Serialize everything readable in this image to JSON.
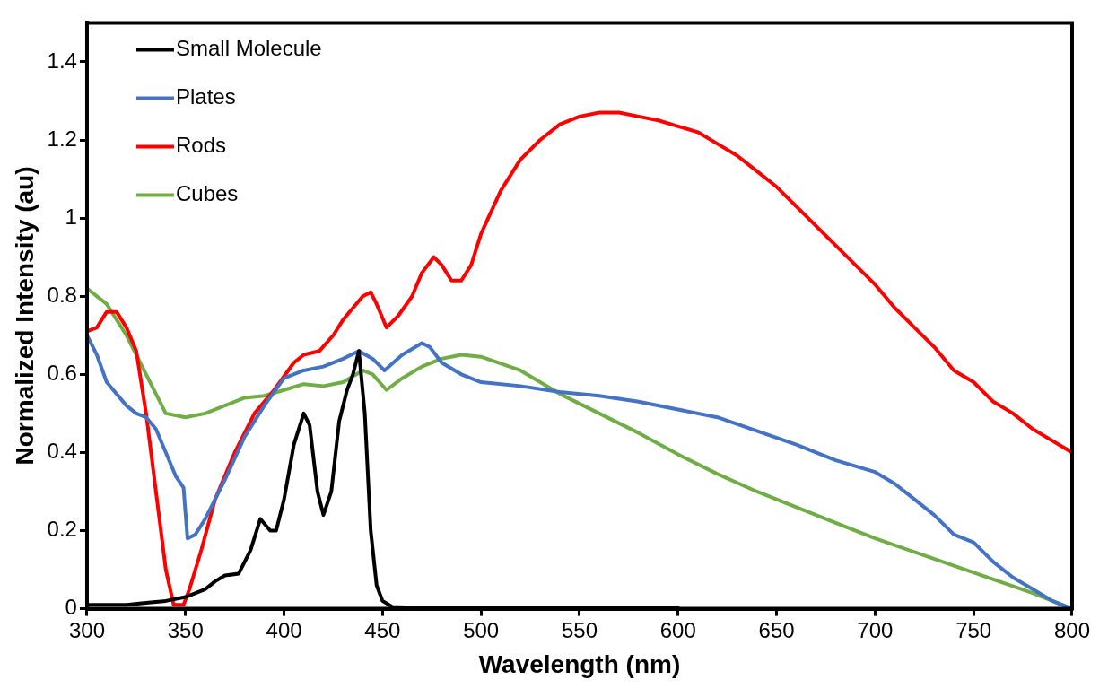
{
  "chart_data": {
    "type": "line",
    "xlabel": "Wavelength (nm)",
    "ylabel": "Normalized Intensity (au)",
    "xlim": [
      300,
      800
    ],
    "xticks": [
      300,
      350,
      400,
      450,
      500,
      550,
      600,
      650,
      700,
      750,
      800
    ],
    "ylim": [
      0,
      1.5
    ],
    "yticks": [
      0,
      0.2,
      0.4,
      0.6,
      0.8,
      1,
      1.2,
      1.4
    ],
    "grid": false,
    "legend": "top left",
    "marker": "none",
    "line_style": "solid",
    "series": [
      {
        "name": "Small Molecule",
        "color": "#000000",
        "x": [
          300,
          320,
          330,
          340,
          350,
          360,
          365,
          370,
          377,
          383,
          388,
          393,
          396,
          400,
          405,
          410,
          413,
          417,
          420,
          424,
          428,
          432,
          435,
          438,
          441,
          444,
          447,
          450,
          455,
          470,
          600
        ],
        "values": [
          0.01,
          0.01,
          0.015,
          0.02,
          0.03,
          0.05,
          0.07,
          0.085,
          0.09,
          0.15,
          0.23,
          0.2,
          0.2,
          0.28,
          0.42,
          0.5,
          0.47,
          0.3,
          0.24,
          0.3,
          0.48,
          0.56,
          0.6,
          0.66,
          0.5,
          0.2,
          0.06,
          0.02,
          0.005,
          0.002,
          0.002
        ]
      },
      {
        "name": "Plates",
        "color": "#4472c4",
        "x": [
          300,
          305,
          310,
          320,
          325,
          330,
          335,
          340,
          345,
          349,
          351,
          355,
          360,
          370,
          380,
          390,
          400,
          410,
          420,
          430,
          438,
          445,
          451,
          460,
          470,
          474,
          480,
          490,
          500,
          520,
          540,
          560,
          580,
          600,
          620,
          640,
          660,
          680,
          700,
          710,
          720,
          730,
          740,
          750,
          760,
          770,
          780,
          790,
          800
        ],
        "values": [
          0.7,
          0.65,
          0.58,
          0.52,
          0.5,
          0.49,
          0.46,
          0.4,
          0.34,
          0.31,
          0.18,
          0.19,
          0.23,
          0.33,
          0.44,
          0.52,
          0.59,
          0.61,
          0.62,
          0.64,
          0.66,
          0.64,
          0.61,
          0.65,
          0.68,
          0.67,
          0.63,
          0.6,
          0.58,
          0.57,
          0.555,
          0.545,
          0.53,
          0.51,
          0.49,
          0.455,
          0.42,
          0.38,
          0.35,
          0.32,
          0.28,
          0.24,
          0.19,
          0.17,
          0.12,
          0.08,
          0.05,
          0.02,
          0
        ]
      },
      {
        "name": "Rods",
        "color": "#ff0000",
        "x": [
          300,
          305,
          310,
          315,
          320,
          325,
          330,
          335,
          340,
          344,
          349,
          352,
          358,
          365,
          375,
          385,
          395,
          405,
          410,
          418,
          425,
          430,
          435,
          440,
          444,
          447,
          452,
          458,
          465,
          470,
          476,
          480,
          485,
          490,
          495,
          500,
          510,
          520,
          530,
          540,
          550,
          560,
          570,
          580,
          590,
          600,
          610,
          620,
          630,
          640,
          650,
          660,
          670,
          680,
          690,
          700,
          710,
          720,
          730,
          740,
          750,
          760,
          770,
          780,
          790,
          800
        ],
        "values": [
          0.71,
          0.72,
          0.76,
          0.76,
          0.72,
          0.66,
          0.5,
          0.3,
          0.1,
          0.01,
          0.01,
          0.05,
          0.15,
          0.28,
          0.4,
          0.5,
          0.56,
          0.63,
          0.65,
          0.66,
          0.7,
          0.74,
          0.77,
          0.8,
          0.81,
          0.78,
          0.72,
          0.75,
          0.8,
          0.86,
          0.9,
          0.88,
          0.84,
          0.84,
          0.88,
          0.96,
          1.07,
          1.15,
          1.2,
          1.24,
          1.26,
          1.27,
          1.27,
          1.26,
          1.25,
          1.235,
          1.22,
          1.19,
          1.16,
          1.12,
          1.08,
          1.03,
          0.98,
          0.93,
          0.88,
          0.83,
          0.77,
          0.72,
          0.67,
          0.61,
          0.58,
          0.53,
          0.5,
          0.46,
          0.43,
          0.4
        ]
      },
      {
        "name": "Cubes",
        "color": "#70ad47",
        "x": [
          300,
          310,
          320,
          330,
          340,
          350,
          360,
          370,
          380,
          390,
          400,
          410,
          420,
          430,
          440,
          445,
          452,
          460,
          470,
          480,
          490,
          500,
          520,
          540,
          560,
          580,
          600,
          620,
          640,
          660,
          680,
          700,
          720,
          740,
          760,
          780,
          800
        ],
        "values": [
          0.82,
          0.78,
          0.7,
          0.6,
          0.5,
          0.49,
          0.5,
          0.52,
          0.54,
          0.545,
          0.56,
          0.575,
          0.57,
          0.58,
          0.61,
          0.6,
          0.56,
          0.59,
          0.62,
          0.64,
          0.65,
          0.645,
          0.61,
          0.55,
          0.5,
          0.45,
          0.395,
          0.345,
          0.3,
          0.26,
          0.22,
          0.18,
          0.145,
          0.11,
          0.075,
          0.04,
          0
        ]
      }
    ]
  }
}
